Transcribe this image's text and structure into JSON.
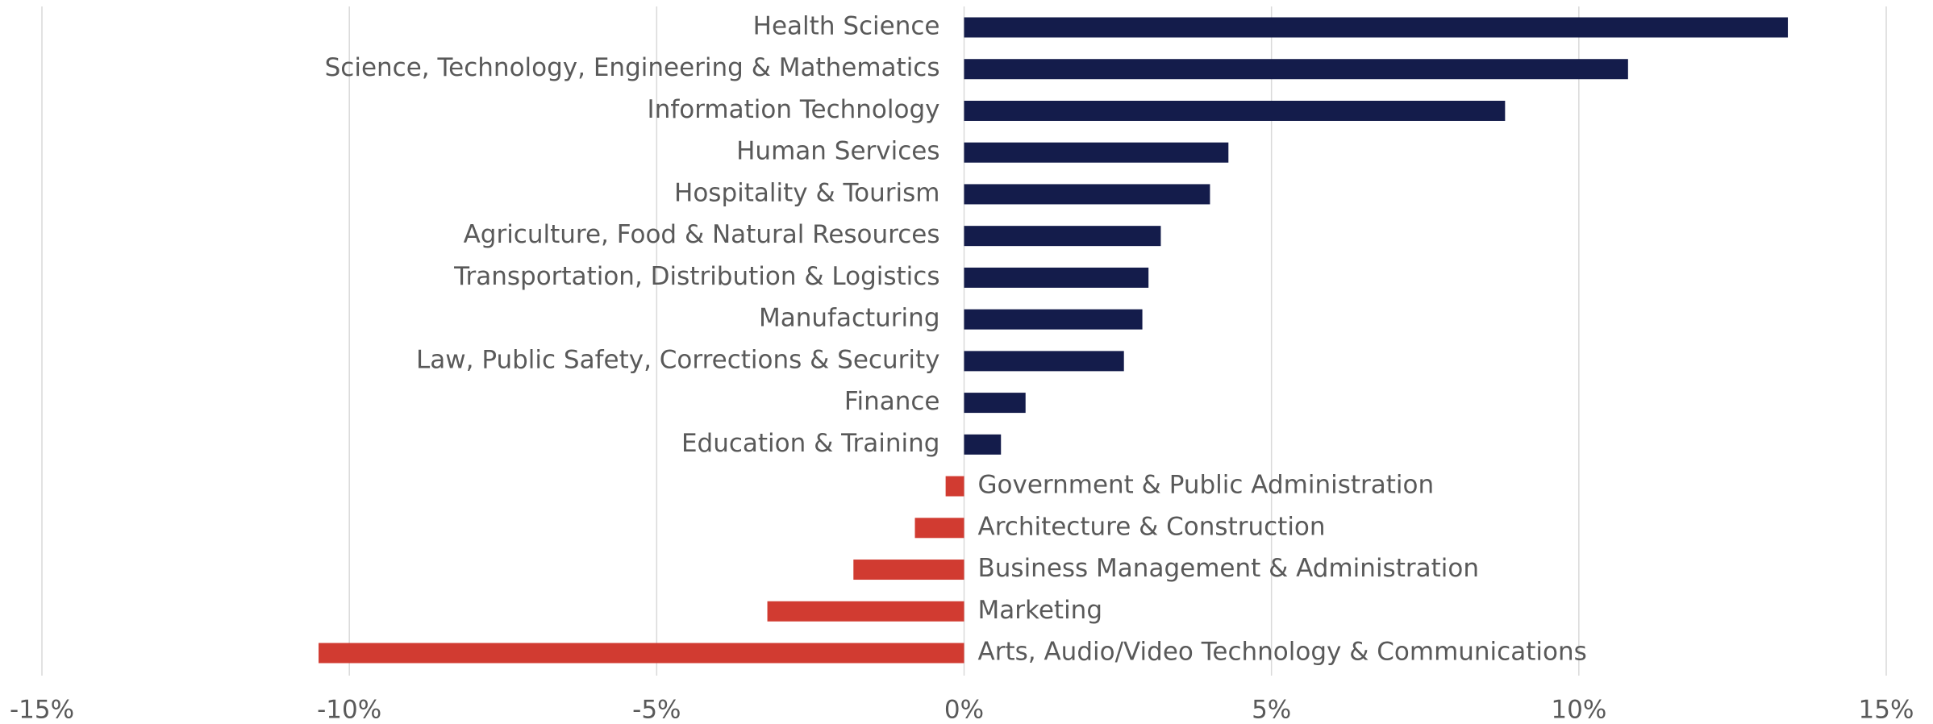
{
  "chart_data": {
    "type": "barh",
    "categories": [
      "Health Science",
      "Science, Technology, Engineering & Mathematics",
      "Information Technology",
      "Human Services",
      "Hospitality & Tourism",
      "Agriculture, Food & Natural Resources",
      "Transportation, Distribution & Logistics",
      "Manufacturing",
      "Law, Public Safety, Corrections & Security",
      "Finance",
      "Education & Training",
      "Government & Public Administration",
      "Architecture & Construction",
      "Business Management & Administration",
      "Marketing",
      "Arts, Audio/Video Technology & Communications"
    ],
    "values": [
      13.4,
      10.8,
      8.8,
      4.3,
      4.0,
      3.2,
      3.0,
      2.9,
      2.6,
      1.0,
      0.6,
      -0.3,
      -0.8,
      -1.8,
      -3.2,
      -10.5
    ],
    "color": "#141c4b",
    "negative_color": "#d13b31",
    "xlim": [
      -15,
      15
    ],
    "xticks": [
      {
        "value": -15,
        "label": "-15%"
      },
      {
        "value": -10,
        "label": "-10%"
      },
      {
        "value": -5,
        "label": "-5%"
      },
      {
        "value": 0,
        "label": "0%"
      },
      {
        "value": 5,
        "label": "5%"
      },
      {
        "value": 10,
        "label": "10%"
      },
      {
        "value": 15,
        "label": "15%"
      }
    ],
    "grid": true
  }
}
